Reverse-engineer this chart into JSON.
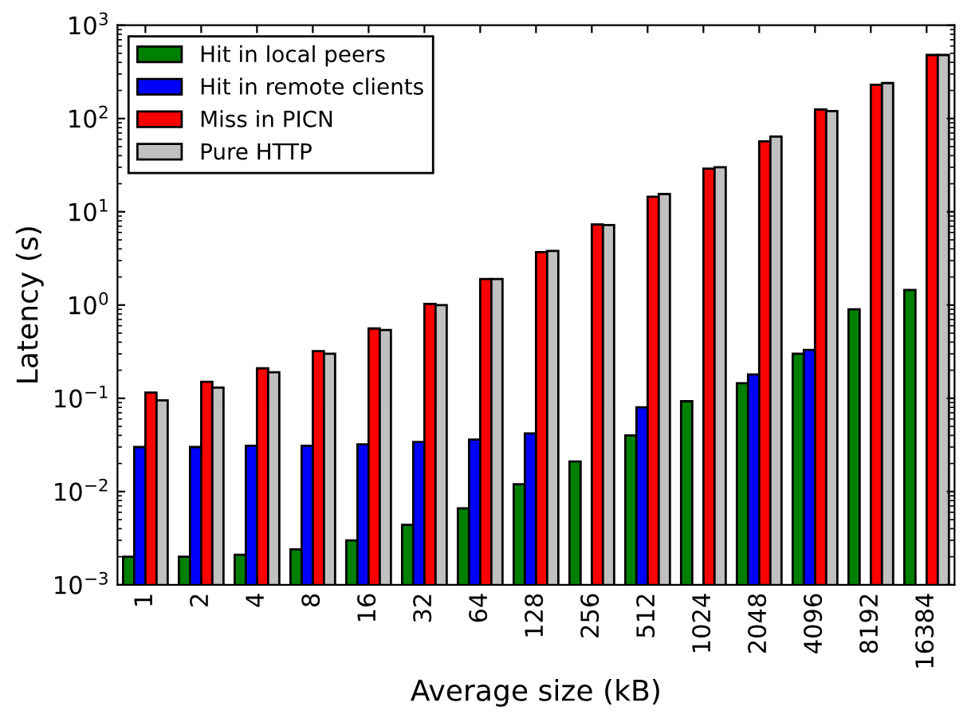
{
  "chart_data": {
    "type": "bar",
    "xlabel": "Average size (kB)",
    "ylabel": "Latency (s)",
    "log": true,
    "legend": "top left",
    "grid": false,
    "categories": [
      "1",
      "2",
      "4",
      "8",
      "16",
      "32",
      "64",
      "128",
      "256",
      "512",
      "1024",
      "2048",
      "4096",
      "8192",
      "16384"
    ],
    "ylim": [
      0.001,
      1000
    ],
    "yticks": [
      {
        "value": 0.001,
        "label": "10$^{−3}$"
      },
      {
        "value": 0.01,
        "label": "10$^{−2}$"
      },
      {
        "value": 0.1,
        "label": "10$^{−1}$"
      },
      {
        "value": 1,
        "label": "10$^{0}$"
      },
      {
        "value": 10,
        "label": "10$^{1}$"
      },
      {
        "value": 100,
        "label": "10$^{2}$"
      },
      {
        "value": 1000,
        "label": "10$^{3}$"
      }
    ],
    "series": [
      {
        "name": "Hit in local peers",
        "color": "#008000",
        "values": [
          0.002,
          0.002,
          0.0021,
          0.0024,
          0.003,
          0.0044,
          0.0066,
          0.012,
          0.021,
          0.04,
          0.093,
          0.145,
          0.3,
          0.9,
          1.45
        ]
      },
      {
        "name": "Hit in remote clients",
        "color": "#0000ff",
        "values": [
          0.03,
          0.03,
          0.031,
          0.031,
          0.032,
          0.034,
          0.036,
          0.042,
          null,
          0.08,
          null,
          0.18,
          0.33,
          null,
          null
        ]
      },
      {
        "name": "Miss in PICN",
        "color": "#ff0000",
        "values": [
          0.115,
          0.15,
          0.21,
          0.32,
          0.56,
          1.03,
          1.9,
          3.7,
          7.3,
          14.5,
          29,
          57,
          125,
          230,
          480
        ]
      },
      {
        "name": "Pure HTTP",
        "color": "#c0c0c0",
        "values": [
          0.095,
          0.13,
          0.19,
          0.3,
          0.54,
          1.0,
          1.9,
          3.8,
          7.2,
          15.5,
          30,
          64,
          120,
          240,
          480
        ]
      }
    ]
  }
}
